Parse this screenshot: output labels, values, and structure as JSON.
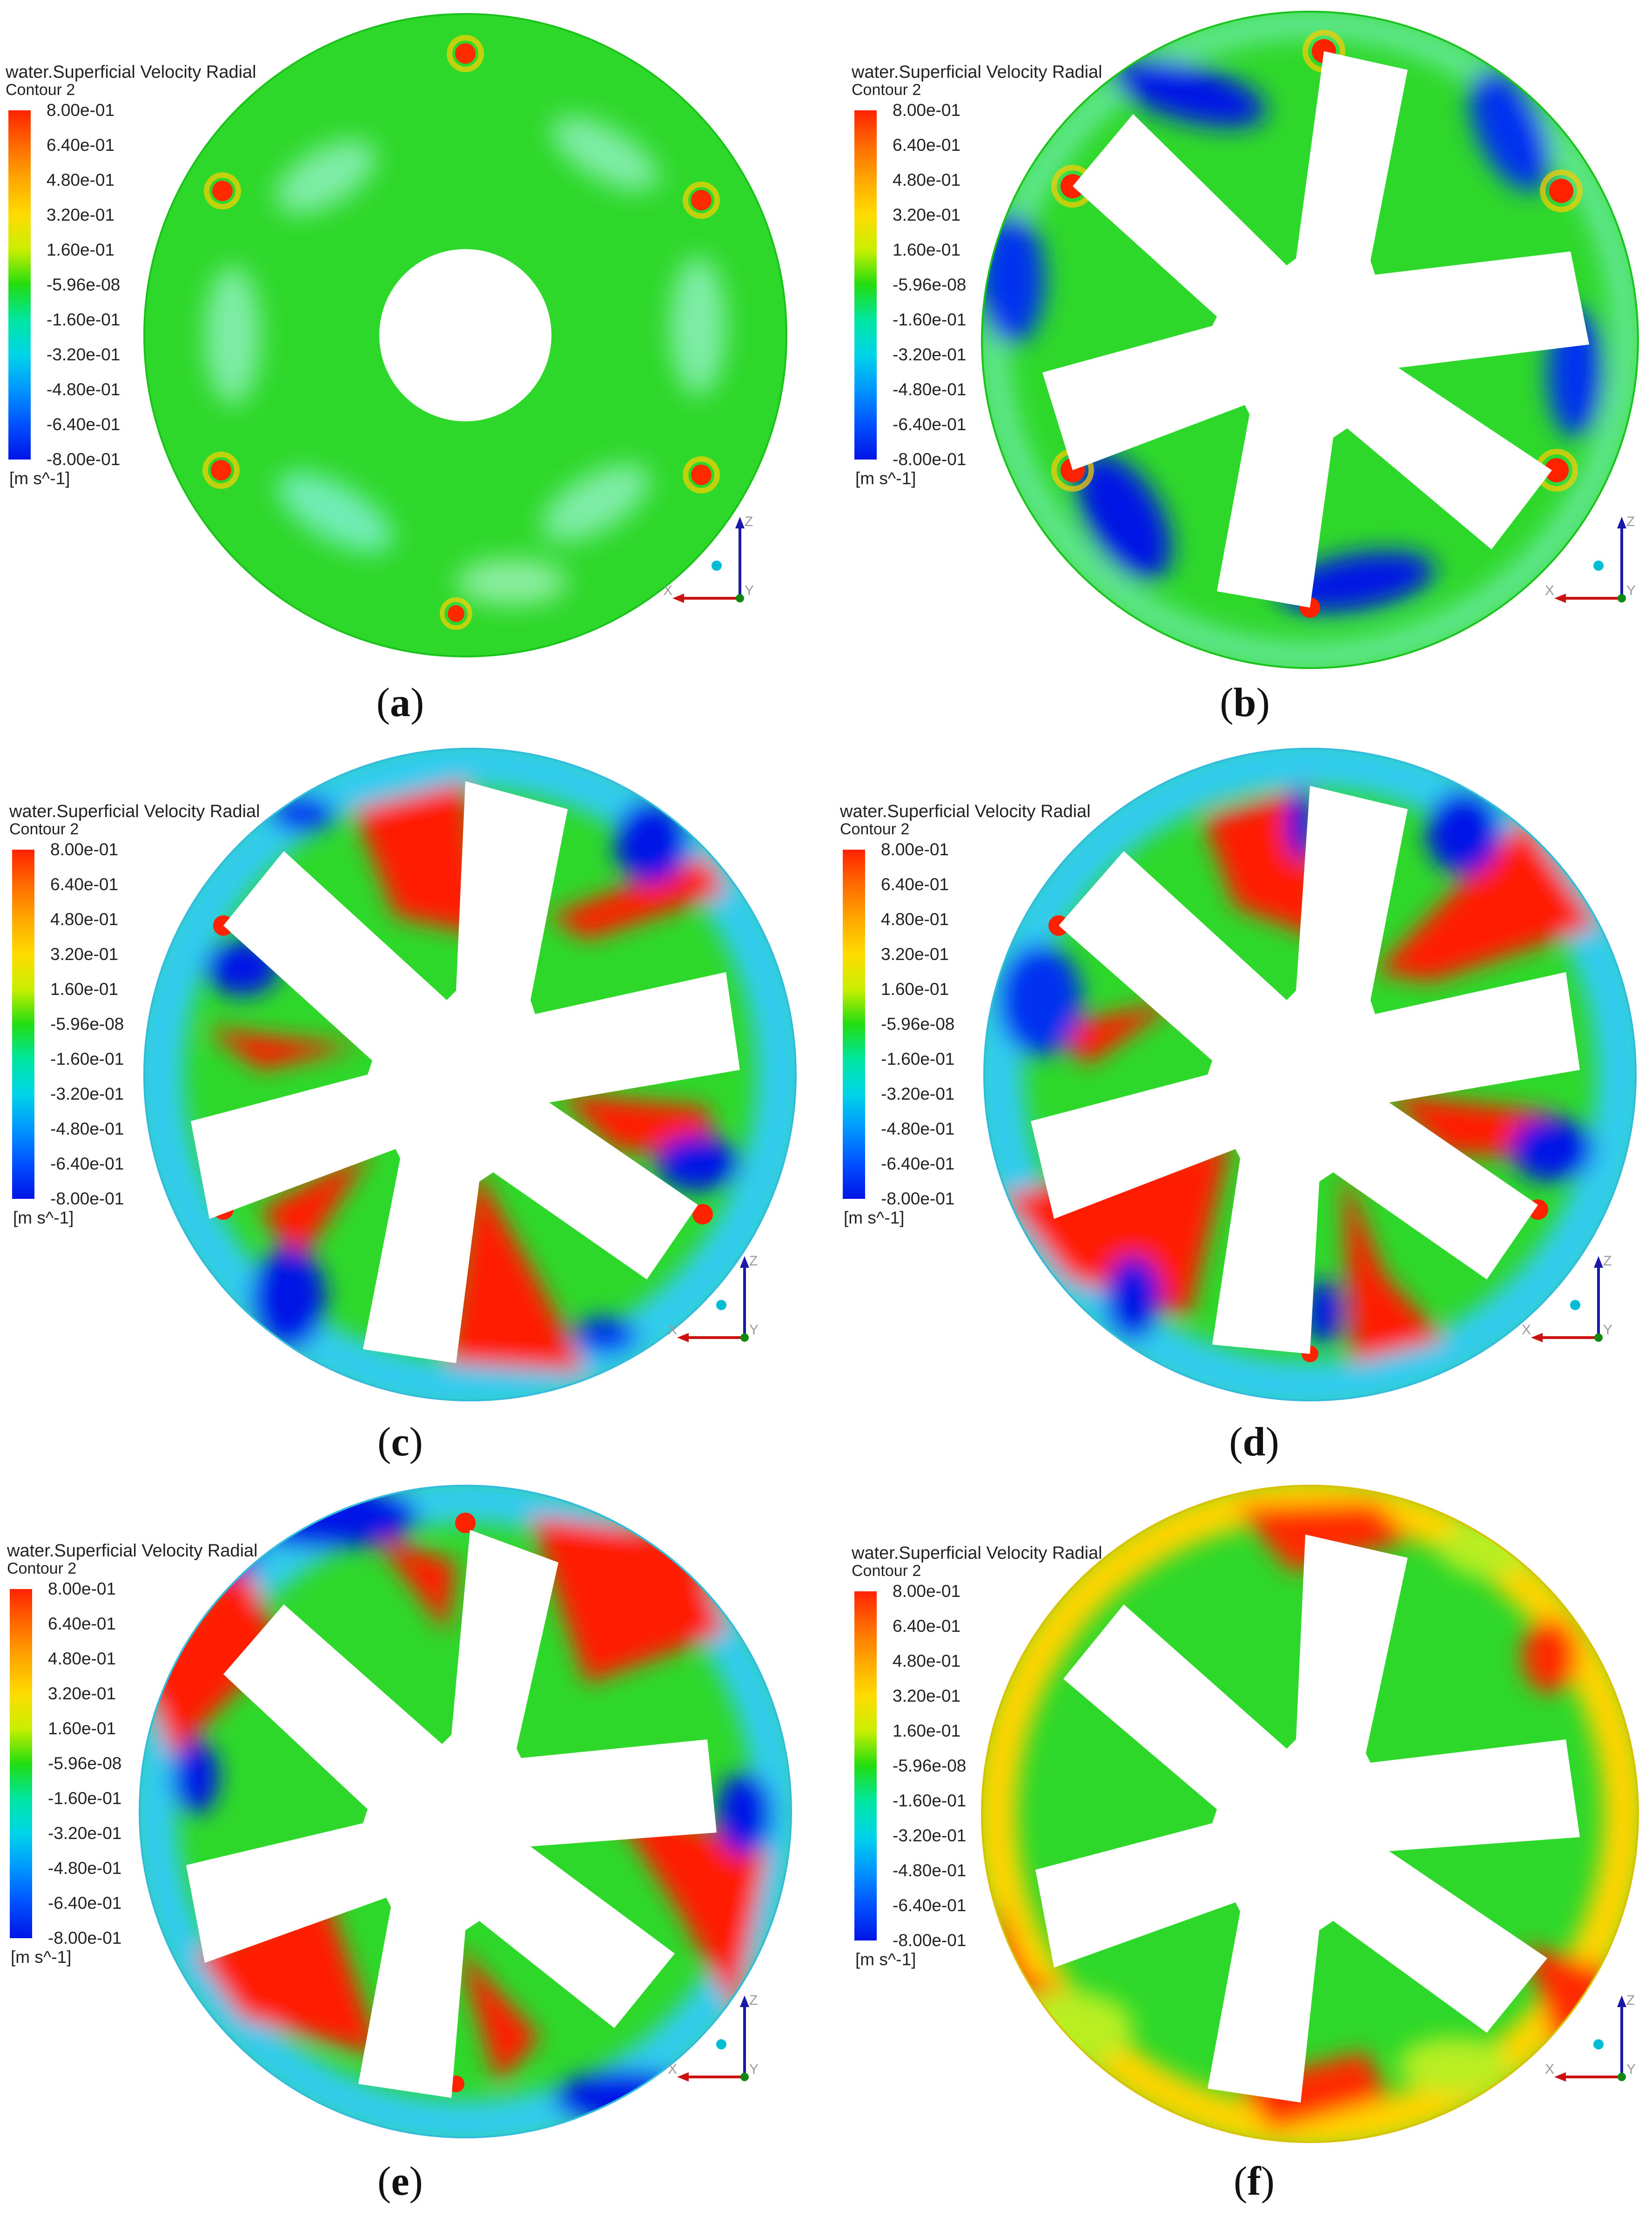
{
  "legend": {
    "title": "water.Superficial Velocity Radial",
    "subtitle": "Contour 2",
    "unit": "[m s^-1]",
    "ticks": [
      "8.00e-01",
      "6.40e-01",
      "4.80e-01",
      "3.20e-01",
      "1.60e-01",
      "-5.96e-08",
      "-1.60e-01",
      "-3.20e-01",
      "-4.80e-01",
      "-6.40e-01",
      "-8.00e-01"
    ],
    "colors": [
      "#ff2200",
      "#ff6a00",
      "#ffa800",
      "#ffdc00",
      "#c8ee00",
      "#22dd11",
      "#00e6a0",
      "#00d4e8",
      "#0096ff",
      "#0050ff",
      "#0014e6"
    ]
  },
  "axes": {
    "z_label": "Z",
    "x_label": "X",
    "y_label": "Y"
  },
  "panels": [
    {
      "caption": "a"
    },
    {
      "caption": "b"
    },
    {
      "caption": "c"
    },
    {
      "caption": "d"
    },
    {
      "caption": "e"
    },
    {
      "caption": "f"
    }
  ]
}
